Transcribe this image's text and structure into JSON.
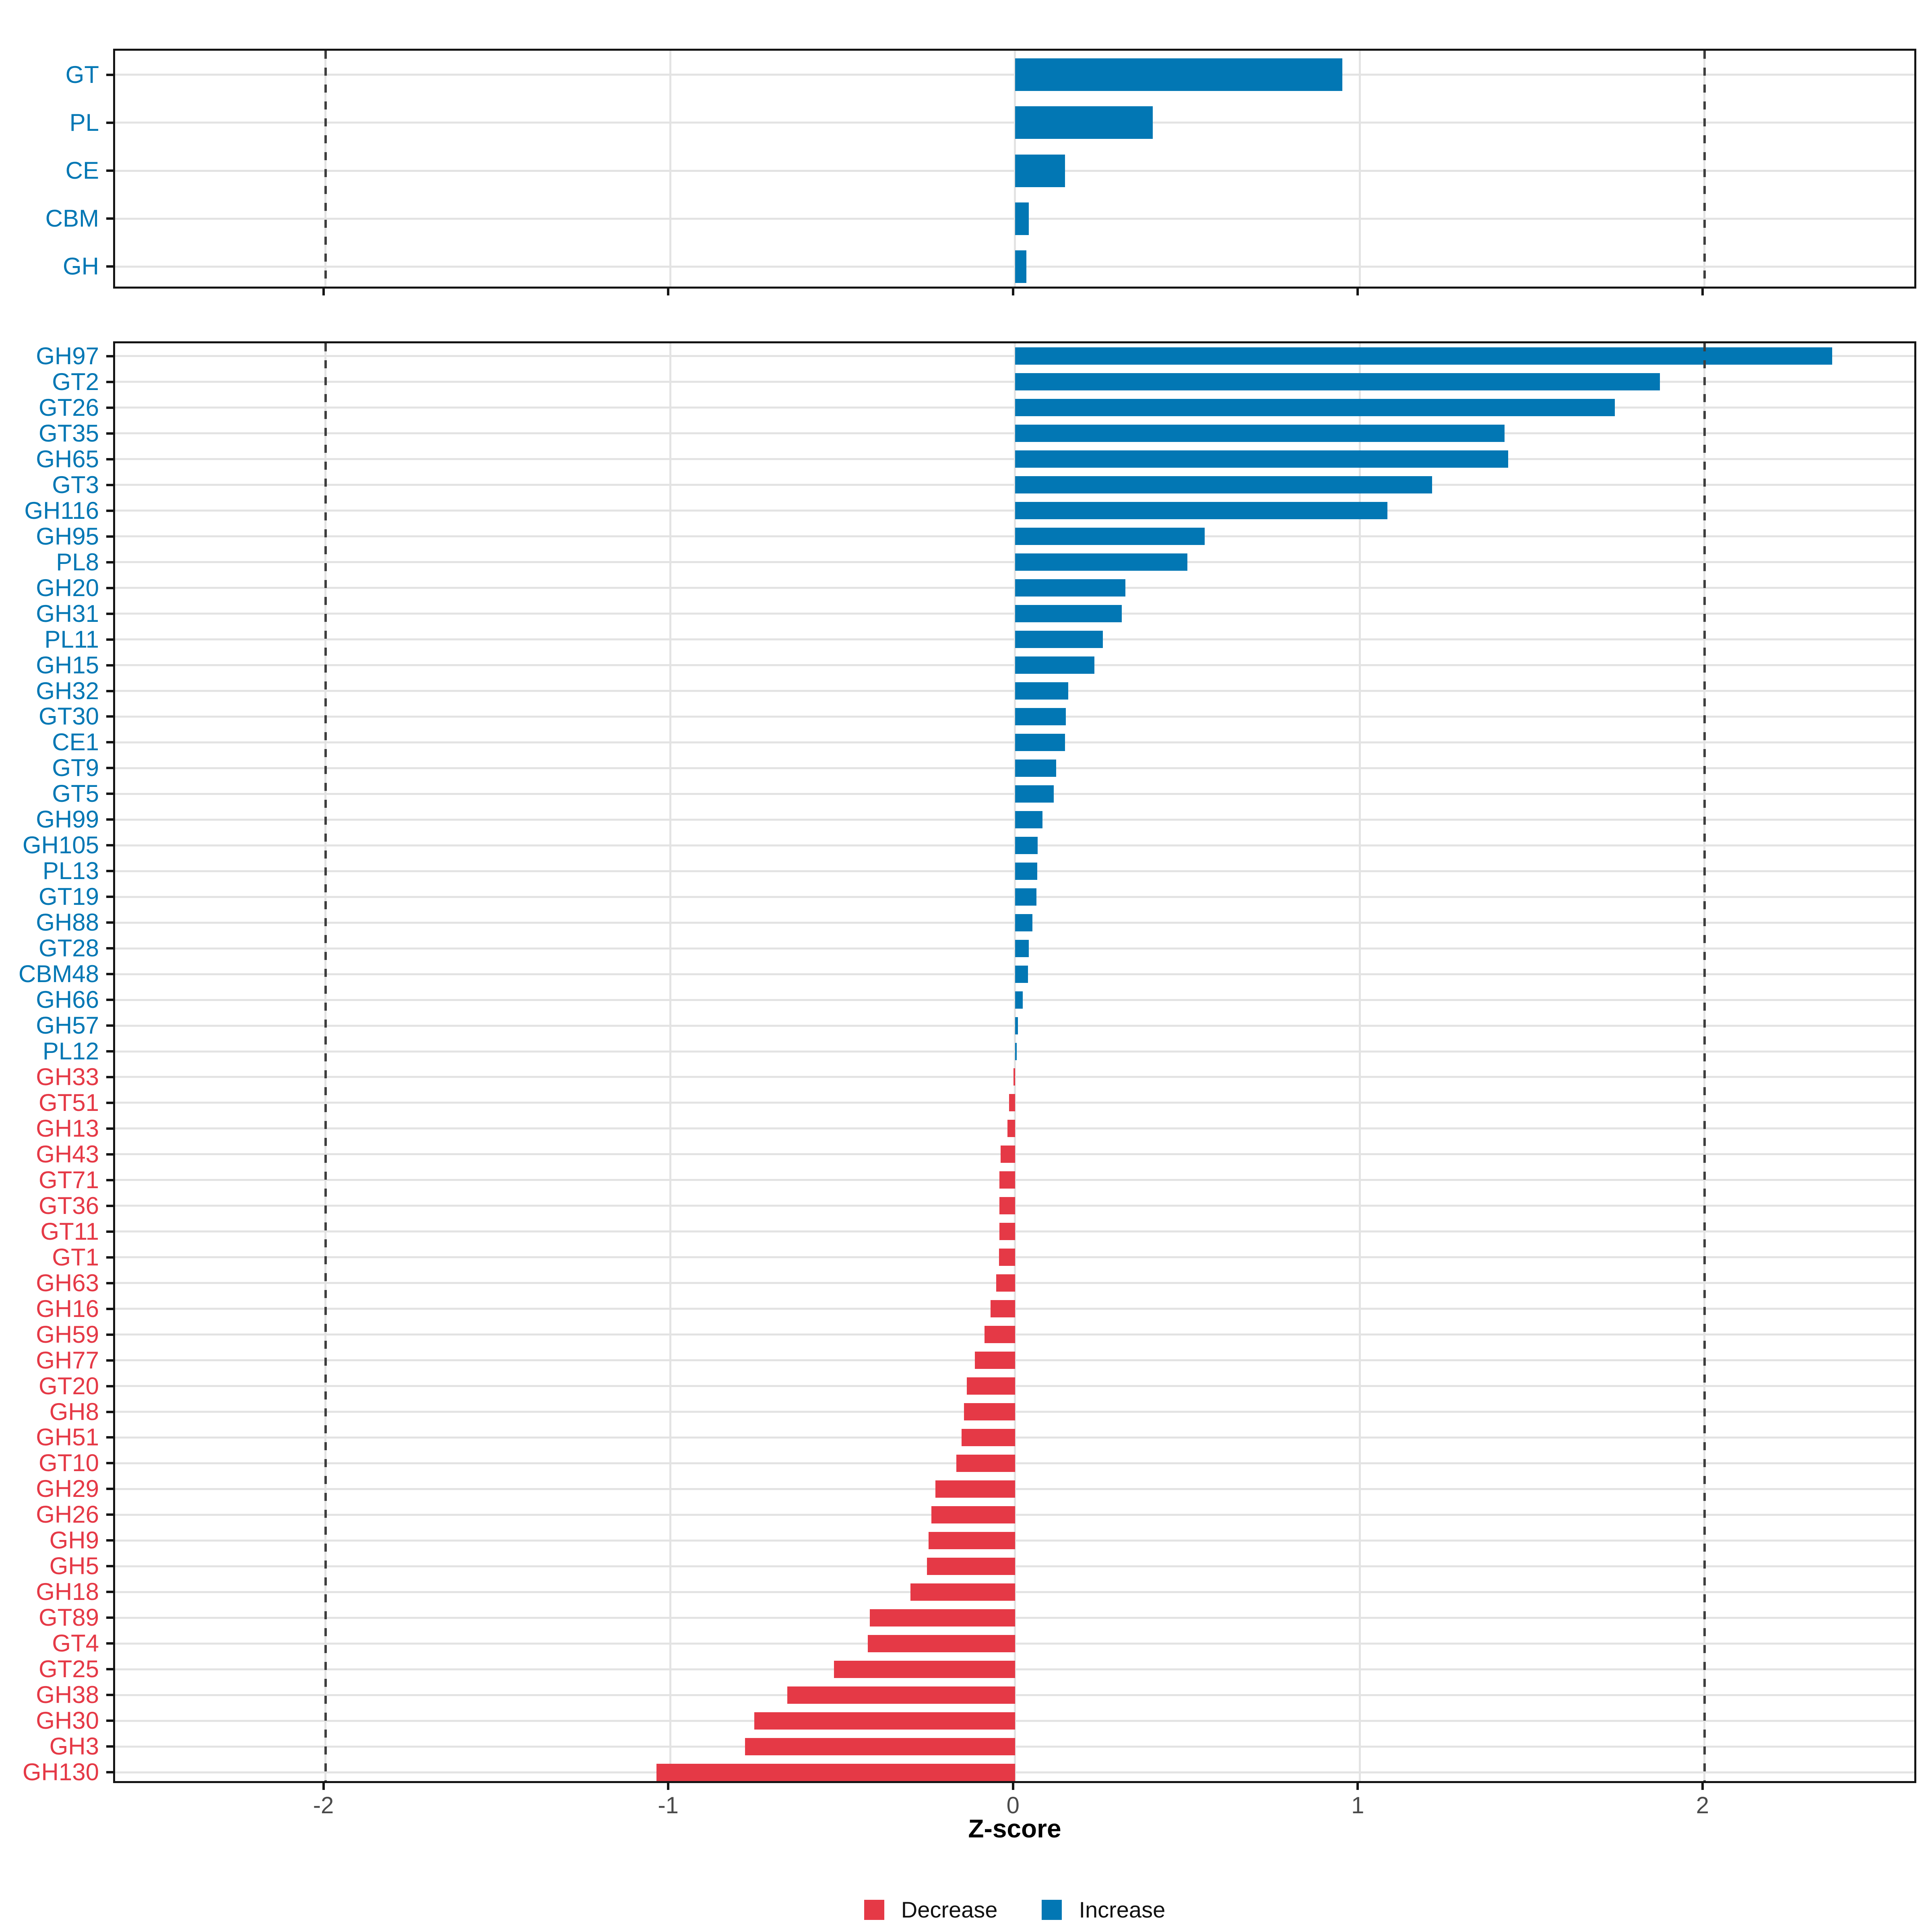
{
  "axis": {
    "xlabel": "Z-score",
    "tick_labels": [
      "-2",
      "-1",
      "0",
      "1",
      "2"
    ],
    "tick_values": [
      -2,
      -1,
      0,
      1,
      2
    ],
    "xlim": [
      -2.61,
      2.62
    ],
    "dashed_lines_at": [
      -2,
      2
    ]
  },
  "legend": {
    "items": [
      {
        "label": "Decrease",
        "key": "decrease",
        "color": "#E53946"
      },
      {
        "label": "Increase",
        "key": "increase",
        "color": "#0277B4"
      }
    ]
  },
  "colors": {
    "increase": "#0277B4",
    "decrease": "#E53946",
    "grid": "#E3E3E3",
    "dashed": "#3E3E3E",
    "border": "#141414",
    "tick": "#141414",
    "axis_text": "#4B4B4B",
    "background": "#FFFFFF"
  },
  "chart_data": [
    {
      "type": "bar",
      "panel": "top",
      "orientation": "horizontal",
      "title": "",
      "xlim": [
        -2.61,
        2.62
      ],
      "grid": true,
      "categories": [
        "GT",
        "PL",
        "CE",
        "CBM",
        "GH"
      ],
      "values": [
        0.95,
        0.4,
        0.145,
        0.04,
        0.033
      ]
    },
    {
      "type": "bar",
      "panel": "bottom",
      "orientation": "horizontal",
      "title": "",
      "xlabel": "Z-score",
      "xlim": [
        -2.61,
        2.62
      ],
      "grid": true,
      "legend_position": "bottom",
      "categories": [
        "GH97",
        "GT2",
        "GT26",
        "GT35",
        "GH65",
        "GT3",
        "GH116",
        "GH95",
        "PL8",
        "GH20",
        "GH31",
        "PL11",
        "GH15",
        "GH32",
        "GT30",
        "CE1",
        "GT9",
        "GT5",
        "GH99",
        "GH105",
        "PL13",
        "GT19",
        "GH88",
        "GT28",
        "CBM48",
        "GH66",
        "GH57",
        "PL12",
        "GH33",
        "GT51",
        "GH13",
        "GH43",
        "GT71",
        "GT36",
        "GT11",
        "GT1",
        "GH63",
        "GH16",
        "GH59",
        "GH77",
        "GT20",
        "GH8",
        "GH51",
        "GT10",
        "GH29",
        "GH26",
        "GH9",
        "GH5",
        "GH18",
        "GT89",
        "GT4",
        "GT25",
        "GH38",
        "GH30",
        "GH3",
        "GH130"
      ],
      "values": [
        2.37,
        1.87,
        1.74,
        1.42,
        1.43,
        1.21,
        1.08,
        0.55,
        0.5,
        0.32,
        0.31,
        0.255,
        0.23,
        0.155,
        0.148,
        0.145,
        0.12,
        0.112,
        0.08,
        0.066,
        0.064,
        0.062,
        0.05,
        0.04,
        0.038,
        0.023,
        0.008,
        0.005,
        -0.004,
        -0.017,
        -0.022,
        -0.042,
        -0.045,
        -0.045,
        -0.045,
        -0.046,
        -0.055,
        -0.071,
        -0.088,
        -0.116,
        -0.14,
        -0.148,
        -0.155,
        -0.17,
        -0.231,
        -0.243,
        -0.251,
        -0.255,
        -0.303,
        -0.421,
        -0.427,
        -0.525,
        -0.66,
        -0.756,
        -0.783,
        -1.04
      ]
    }
  ]
}
